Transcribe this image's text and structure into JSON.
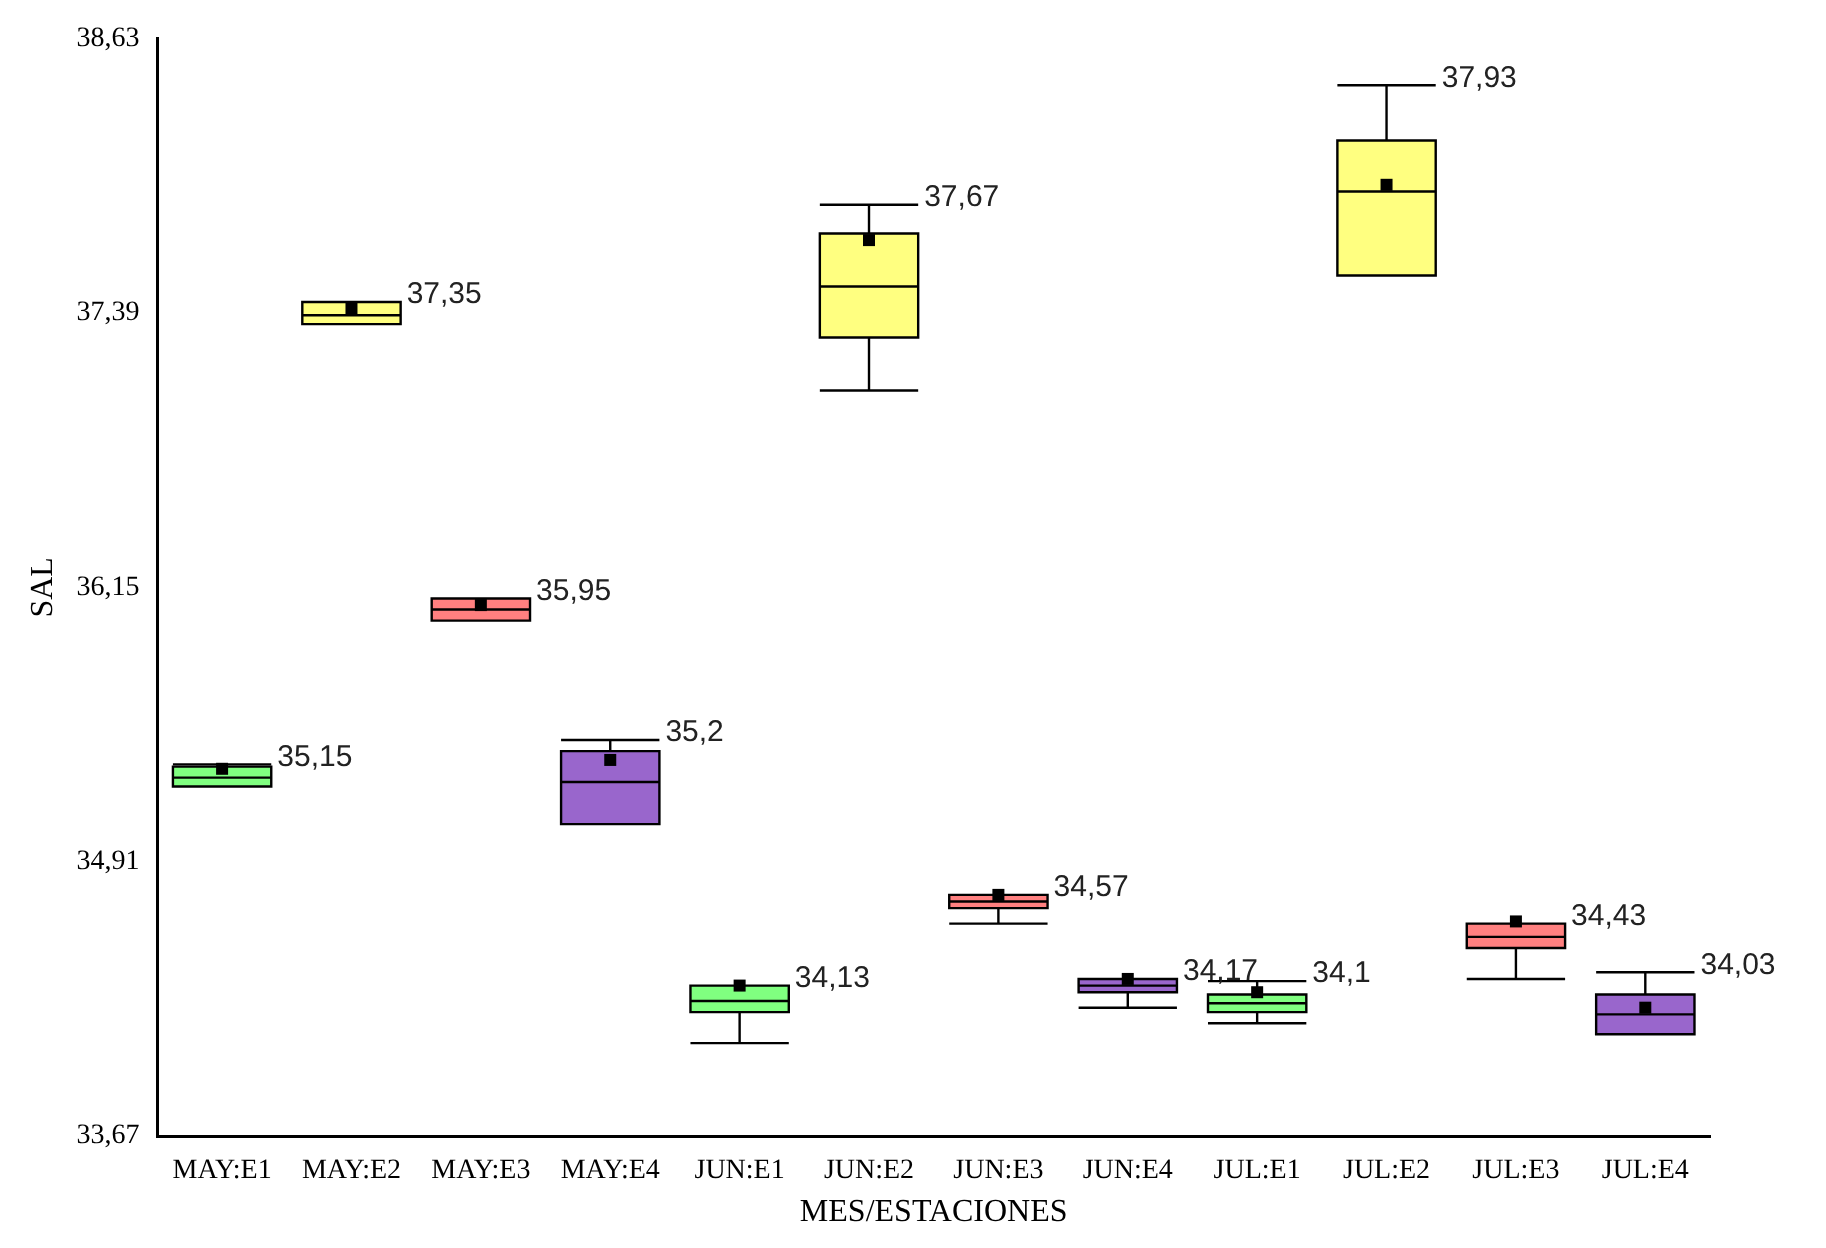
{
  "chart_data": {
    "type": "box",
    "xlabel": "MES/ESTACIONES",
    "ylabel": "SAL",
    "categories": [
      "MAY:E1",
      "MAY:E2",
      "MAY:E3",
      "MAY:E4",
      "JUN:E1",
      "JUN:E2",
      "JUN:E3",
      "JUN:E4",
      "JUL:E1",
      "JUL:E2",
      "JUL:E3",
      "JUL:E4"
    ],
    "colors": [
      "#80ff80",
      "#ffff80",
      "#ff8080",
      "#9966cc",
      "#80ff80",
      "#ffff80",
      "#ff8080",
      "#9966cc",
      "#80ff80",
      "#ffff80",
      "#ff8080",
      "#9966cc"
    ],
    "boxes": [
      {
        "low": 35.25,
        "q1": 35.25,
        "median": 35.29,
        "q3": 35.34,
        "high": 35.35,
        "mean": 35.33
      },
      {
        "low": 37.34,
        "q1": 37.34,
        "median": 37.38,
        "q3": 37.44,
        "high": 37.44,
        "mean": 37.41
      },
      {
        "low": 36.0,
        "q1": 36.0,
        "median": 36.05,
        "q3": 36.1,
        "high": 36.1,
        "mean": 36.07
      },
      {
        "low": 35.08,
        "q1": 35.08,
        "median": 35.27,
        "q3": 35.41,
        "high": 35.46,
        "mean": 35.37
      },
      {
        "low": 34.09,
        "q1": 34.23,
        "median": 34.28,
        "q3": 34.35,
        "high": 34.35,
        "mean": 34.35
      },
      {
        "low": 37.04,
        "q1": 37.28,
        "median": 37.51,
        "q3": 37.75,
        "high": 37.88,
        "mean": 37.72
      },
      {
        "low": 34.63,
        "q1": 34.7,
        "median": 34.73,
        "q3": 34.76,
        "high": 34.76,
        "mean": 34.76
      },
      {
        "low": 34.25,
        "q1": 34.32,
        "median": 34.35,
        "q3": 34.38,
        "high": 34.38,
        "mean": 34.38
      },
      {
        "low": 34.18,
        "q1": 34.23,
        "median": 34.27,
        "q3": 34.31,
        "high": 34.37,
        "mean": 34.32
      },
      {
        "low": 37.56,
        "q1": 37.56,
        "median": 37.94,
        "q3": 38.17,
        "high": 38.42,
        "mean": 37.97
      },
      {
        "low": 34.38,
        "q1": 34.52,
        "median": 34.57,
        "q3": 34.63,
        "high": 34.63,
        "mean": 34.64
      },
      {
        "low": 34.13,
        "q1": 34.13,
        "median": 34.22,
        "q3": 34.31,
        "high": 34.41,
        "mean": 34.25
      }
    ],
    "ylim": [
      33.67,
      38.63
    ],
    "yticks": [
      {
        "value": 33.67,
        "label": "33,67"
      },
      {
        "value": 34.91,
        "label": "34,91"
      },
      {
        "value": 36.15,
        "label": "36,15"
      },
      {
        "value": 37.39,
        "label": "37,39"
      },
      {
        "value": 38.63,
        "label": "38,63"
      }
    ],
    "annotations": [
      "35,15",
      "37,35",
      "35,95",
      "35,2",
      "34,13",
      "37,67",
      "34,57",
      "34,17",
      "34,1",
      "37,93",
      "34,43",
      "34,03"
    ],
    "grid": false,
    "legend": false
  }
}
